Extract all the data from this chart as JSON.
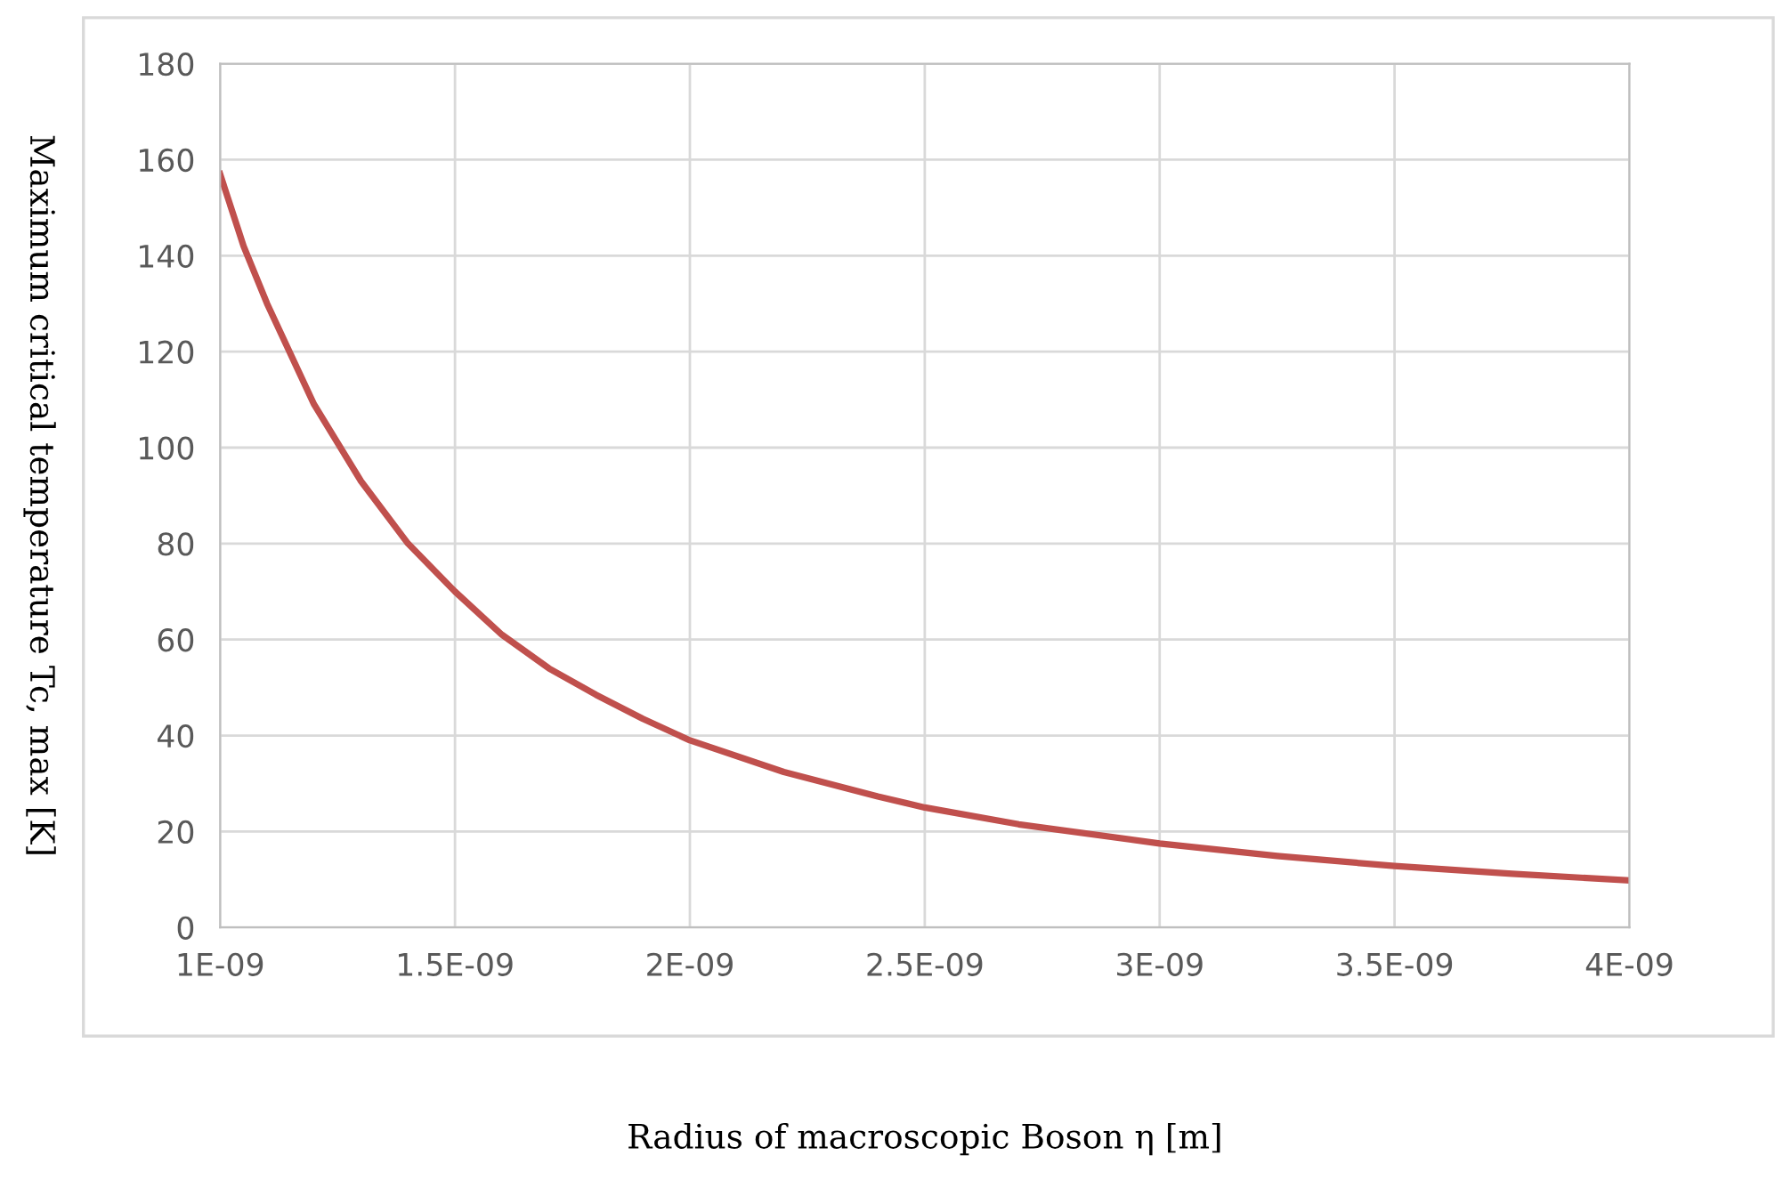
{
  "chart_data": {
    "type": "line",
    "xlabel": "Radius of macroscopic Boson η [m]",
    "ylabel": "Maximum critical temperature Tc, max [K]",
    "x": [
      1e-09,
      1.05e-09,
      1.1e-09,
      1.2e-09,
      1.3e-09,
      1.4e-09,
      1.5e-09,
      1.6e-09,
      1.7e-09,
      1.8e-09,
      1.9e-09,
      2e-09,
      2.2e-09,
      2.4e-09,
      2.5e-09,
      2.7e-09,
      3e-09,
      3.25e-09,
      3.5e-09,
      3.75e-09,
      4e-09
    ],
    "series": [
      {
        "color": "#c0504d",
        "values": [
          157,
          142,
          130,
          109,
          93,
          80,
          70,
          61,
          54,
          48.5,
          43.5,
          39,
          32.4,
          27.3,
          25,
          21.5,
          17.5,
          14.9,
          12.8,
          11.2,
          9.8
        ]
      }
    ],
    "xlim": [
      1e-09,
      4e-09
    ],
    "xticks": [
      {
        "value": 1e-09,
        "label": "1E-09"
      },
      {
        "value": 1.5e-09,
        "label": "1.5E-09"
      },
      {
        "value": 2e-09,
        "label": "2E-09"
      },
      {
        "value": 2.5e-09,
        "label": "2.5E-09"
      },
      {
        "value": 3e-09,
        "label": "3E-09"
      },
      {
        "value": 3.5e-09,
        "label": "3.5E-09"
      },
      {
        "value": 4e-09,
        "label": "4E-09"
      }
    ],
    "ylim": [
      0,
      180
    ],
    "yticks": [
      0,
      20,
      40,
      60,
      80,
      100,
      120,
      140,
      160,
      180
    ],
    "grid": true,
    "marker": "none",
    "line_style": "solid"
  }
}
